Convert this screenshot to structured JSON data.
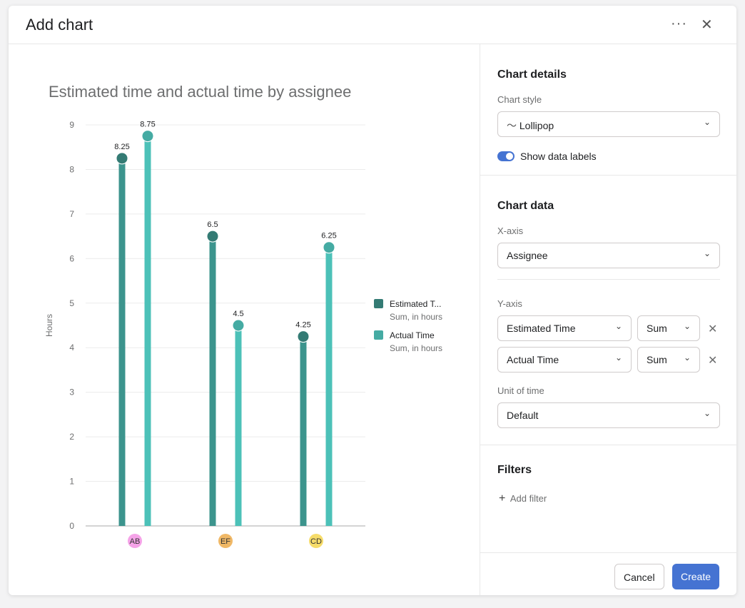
{
  "header": {
    "title": "Add chart",
    "more_icon": "more-horizontal-icon",
    "close_icon": "close-icon"
  },
  "chart_data": {
    "type": "lollipop",
    "title": "Estimated time and actual time by assignee",
    "ylabel": "Hours",
    "xlabel": "",
    "ylim": [
      0,
      9
    ],
    "yticks": [
      "0",
      "1",
      "2",
      "3",
      "4",
      "5",
      "6",
      "7",
      "8",
      "9"
    ],
    "categories": [
      "AB",
      "EF",
      "CD"
    ],
    "category_colors": [
      "#f5a3e8",
      "#f0b866",
      "#f6dc6a"
    ],
    "grid": true,
    "legend_position": "right",
    "series": [
      {
        "name": "Estimated T...",
        "sub": "Sum, in hours",
        "color": "#3c948d",
        "dot": "#347b74",
        "values": [
          8.25,
          6.5,
          4.25
        ],
        "labels": [
          "8.25",
          "6.5",
          "4.25"
        ]
      },
      {
        "name": "Actual Time",
        "sub": "Sum, in hours",
        "color": "#4cc1b8",
        "dot": "#45aba3",
        "values": [
          8.75,
          4.5,
          6.25
        ],
        "labels": [
          "8.75",
          "4.5",
          "6.25"
        ]
      }
    ]
  },
  "panel": {
    "details_title": "Chart details",
    "style_label": "Chart style",
    "style_value": "Lollipop",
    "show_labels": "Show data labels",
    "show_labels_on": true,
    "data_title": "Chart data",
    "xaxis_label": "X-axis",
    "xaxis_value": "Assignee",
    "yaxis_label": "Y-axis",
    "y1_field": "Estimated Time",
    "y1_agg": "Sum",
    "y2_field": "Actual Time",
    "y2_agg": "Sum",
    "unit_label": "Unit of time",
    "unit_value": "Default",
    "filters_title": "Filters",
    "add_filter": "Add filter",
    "cancel": "Cancel",
    "create": "Create",
    "accent": "#4573d2"
  }
}
